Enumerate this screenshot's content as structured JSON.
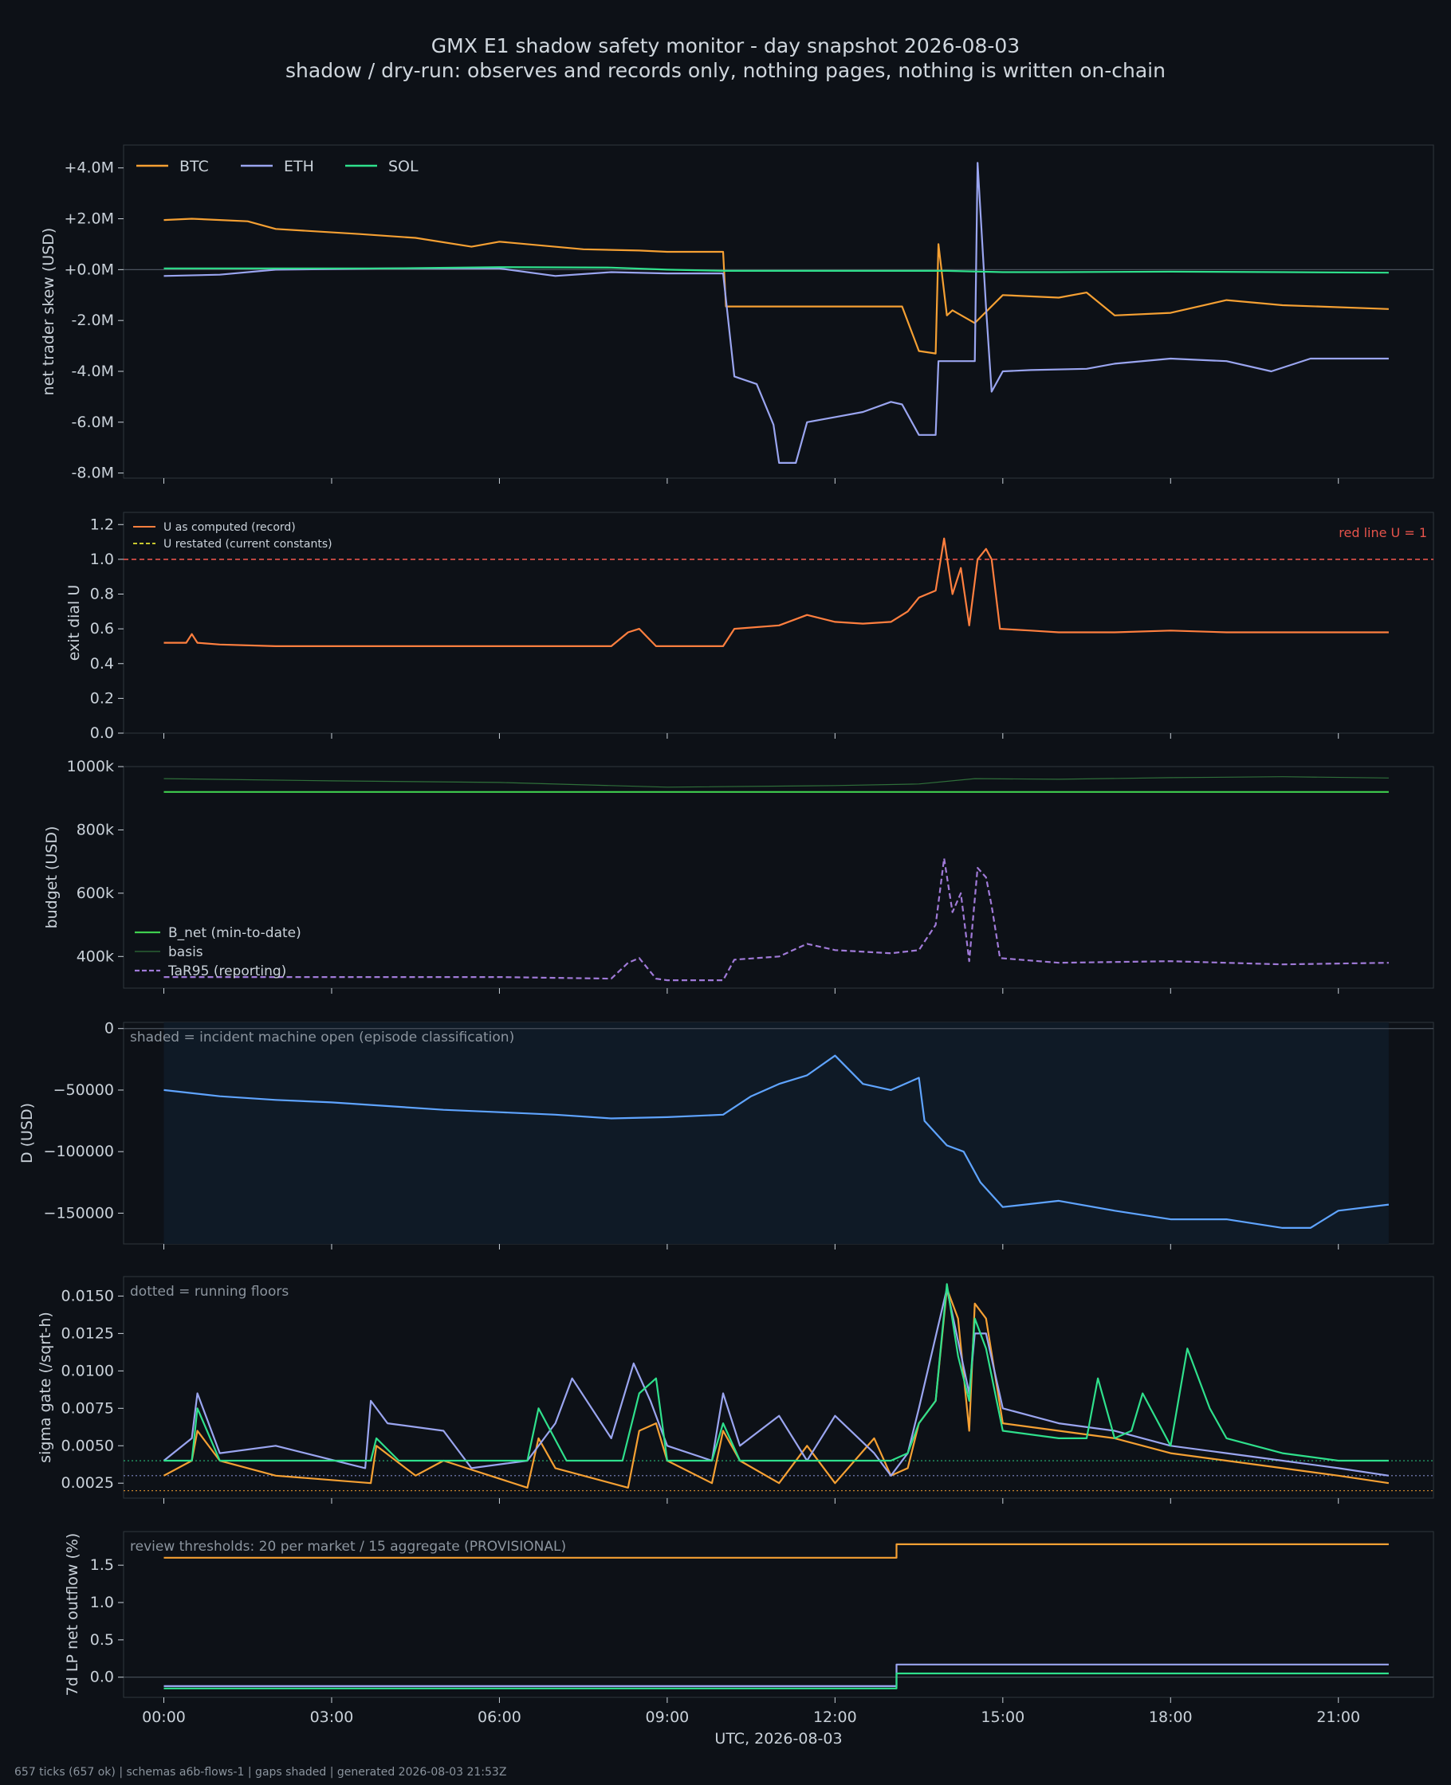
{
  "header": {
    "title": "GMX E1 shadow safety monitor - day snapshot 2026-08-03",
    "subtitle": "shadow / dry-run: observes and records only, nothing pages, nothing is written on-chain"
  },
  "footer": "657 ticks (657 ok) | schemas a6b-flows-1 | gaps shaded | generated 2026-08-03 21:53Z",
  "colors": {
    "btc": "#f5a033",
    "eth": "#9aa5f0",
    "sol": "#2fe08c",
    "u_record": "#ff7f3f",
    "u_restated": "#c8c830",
    "redline": "#e5534b",
    "b_net": "#3fcf4f",
    "basis": "#2f6f3a",
    "tar95": "#a07ad8",
    "d_line": "#5fa4ff",
    "shade": "#0f1a26"
  },
  "chart_data": [
    {
      "id": "skew",
      "type": "line",
      "ylabel": "net trader skew (USD)",
      "ylim": [
        -8.2,
        4.9
      ],
      "yticks": [
        4,
        2,
        0,
        -2,
        -4,
        -6,
        -8
      ],
      "yticklabels": [
        "+4.0M",
        "+2.0M",
        "+0.0M",
        "-2.0M",
        "-4.0M",
        "-6.0M",
        "-8.0M"
      ],
      "legend": "top-left",
      "zero_line": true,
      "series": [
        {
          "name": "BTC",
          "color": "btc",
          "x": [
            0,
            0.5,
            1.5,
            2,
            3.5,
            4.5,
            5.5,
            6,
            7.5,
            8.5,
            9,
            10,
            10.05,
            11.5,
            13.2,
            13.5,
            13.8,
            13.85,
            14,
            14.1,
            14.5,
            15,
            16,
            16.5,
            17,
            18,
            19,
            20,
            21.9
          ],
          "y": [
            1.95,
            2.0,
            1.9,
            1.6,
            1.4,
            1.25,
            0.9,
            1.1,
            0.8,
            0.75,
            0.7,
            0.7,
            -1.45,
            -1.45,
            -1.45,
            -3.2,
            -3.3,
            1.0,
            -1.8,
            -1.6,
            -2.1,
            -1.0,
            -1.1,
            -0.9,
            -1.8,
            -1.7,
            -1.2,
            -1.4,
            -1.55
          ]
        },
        {
          "name": "ETH",
          "color": "eth",
          "x": [
            0,
            1,
            2,
            4,
            6,
            7,
            8,
            9,
            10,
            10.2,
            10.6,
            10.9,
            11,
            11.3,
            11.5,
            12,
            12.5,
            13,
            13.2,
            13.5,
            13.8,
            13.85,
            14,
            14.5,
            14.55,
            14.7,
            14.8,
            15,
            15.5,
            16.5,
            17,
            18,
            19,
            19.8,
            20.5,
            21.9
          ],
          "y": [
            -0.25,
            -0.2,
            0,
            0.05,
            0.05,
            -0.25,
            -0.1,
            -0.15,
            -0.15,
            -4.2,
            -4.5,
            -6.1,
            -7.6,
            -7.6,
            -6.0,
            -5.8,
            -5.6,
            -5.2,
            -5.3,
            -6.5,
            -6.5,
            -3.6,
            -3.6,
            -3.6,
            4.2,
            -1.5,
            -4.8,
            -4.0,
            -3.95,
            -3.9,
            -3.7,
            -3.5,
            -3.6,
            -4.0,
            -3.5,
            -3.5
          ]
        },
        {
          "name": "SOL",
          "color": "sol",
          "x": [
            0,
            2,
            4,
            6,
            8,
            9,
            10,
            12,
            14,
            15,
            16,
            18,
            20,
            21.9
          ],
          "y": [
            0.05,
            0.05,
            0.05,
            0.1,
            0.08,
            0,
            -0.05,
            -0.05,
            -0.05,
            -0.1,
            -0.1,
            -0.08,
            -0.1,
            -0.12
          ]
        }
      ]
    },
    {
      "id": "u",
      "type": "line",
      "ylabel": "exit dial U",
      "ylim": [
        0,
        1.27
      ],
      "yticks": [
        0.0,
        0.2,
        0.4,
        0.6,
        0.8,
        1.0,
        1.2
      ],
      "yticklabels": [
        "0.0",
        "0.2",
        "0.4",
        "0.6",
        "0.8",
        "1.0",
        "1.2"
      ],
      "legend": "top-left",
      "redline": 1.0,
      "redline_label": "red line U = 1",
      "series": [
        {
          "name": "U as computed (record)",
          "color": "u_record",
          "dash": false,
          "x": [
            0,
            0.4,
            0.5,
            0.6,
            1,
            2,
            4,
            6,
            8,
            8.3,
            8.5,
            8.8,
            9,
            9.5,
            10,
            10.2,
            11,
            11.5,
            12,
            12.5,
            13,
            13.3,
            13.5,
            13.8,
            13.95,
            14.1,
            14.25,
            14.4,
            14.55,
            14.7,
            14.8,
            14.95,
            15.5,
            16,
            17,
            18,
            19,
            20,
            21.9
          ],
          "y": [
            0.52,
            0.52,
            0.57,
            0.52,
            0.51,
            0.5,
            0.5,
            0.5,
            0.5,
            0.58,
            0.6,
            0.5,
            0.5,
            0.5,
            0.5,
            0.6,
            0.62,
            0.68,
            0.64,
            0.63,
            0.64,
            0.7,
            0.78,
            0.82,
            1.12,
            0.8,
            0.95,
            0.62,
            1.0,
            1.06,
            1.0,
            0.6,
            0.59,
            0.58,
            0.58,
            0.59,
            0.58,
            0.58,
            0.58
          ]
        },
        {
          "name": "U restated (current constants)",
          "color": "u_restated",
          "dash": true,
          "x": [],
          "y": []
        }
      ]
    },
    {
      "id": "budget",
      "type": "line",
      "ylabel": "budget (USD)",
      "ylim": [
        300,
        1000
      ],
      "yticks": [
        400,
        600,
        800,
        1000
      ],
      "yticklabels": [
        "400k",
        "600k",
        "800k",
        "1000k"
      ],
      "legend": "bottom-left",
      "series": [
        {
          "name": "B_net (min-to-date)",
          "color": "b_net",
          "dash": false,
          "x": [
            0,
            21.9
          ],
          "y": [
            920,
            920
          ]
        },
        {
          "name": "basis",
          "color": "basis",
          "dash": false,
          "x": [
            0,
            3,
            6,
            9,
            12,
            13.5,
            14.5,
            16,
            18,
            20,
            21.9
          ],
          "y": [
            962,
            955,
            950,
            935,
            940,
            945,
            962,
            960,
            965,
            968,
            964
          ]
        },
        {
          "name": "TaR95 (reporting)",
          "color": "tar95",
          "dash": true,
          "x": [
            0,
            2,
            4,
            6,
            8,
            8.3,
            8.5,
            8.8,
            9,
            10,
            10.2,
            11,
            11.5,
            12,
            13,
            13.5,
            13.8,
            13.95,
            14.1,
            14.25,
            14.4,
            14.55,
            14.7,
            14.8,
            14.95,
            16,
            18,
            20,
            21.9
          ],
          "y": [
            335,
            335,
            335,
            335,
            330,
            380,
            395,
            330,
            325,
            325,
            390,
            400,
            440,
            420,
            410,
            420,
            500,
            710,
            540,
            600,
            385,
            680,
            650,
            560,
            395,
            380,
            385,
            375,
            380
          ]
        }
      ]
    },
    {
      "id": "d",
      "type": "line",
      "ylabel": "D (USD)",
      "ylim": [
        -175000,
        5000
      ],
      "yticks": [
        0,
        -50000,
        -100000,
        -150000
      ],
      "yticklabels": [
        "0",
        "−50000",
        "−100000",
        "−150000"
      ],
      "zero_line": true,
      "note": "shaded = incident machine open (episode classification)",
      "shade_x": [
        0,
        21.9
      ],
      "series": [
        {
          "name": "D",
          "color": "d_line",
          "x": [
            0,
            1,
            2,
            3,
            4,
            5,
            6,
            7,
            8,
            9,
            10,
            10.5,
            11,
            11.5,
            12,
            12.5,
            13,
            13.5,
            13.6,
            14,
            14.3,
            14.6,
            15,
            16,
            17,
            18,
            19,
            20,
            20.5,
            21,
            21.9
          ],
          "y": [
            -50000,
            -55000,
            -58000,
            -60000,
            -63000,
            -66000,
            -68000,
            -70000,
            -73000,
            -72000,
            -70000,
            -55000,
            -45000,
            -38000,
            -22000,
            -45000,
            -50000,
            -40000,
            -75000,
            -95000,
            -100000,
            -125000,
            -145000,
            -140000,
            -148000,
            -155000,
            -155000,
            -162000,
            -162000,
            -148000,
            -143000
          ]
        }
      ]
    },
    {
      "id": "sigma",
      "type": "line",
      "ylabel": "sigma gate (/sqrt-h)",
      "ylim": [
        0.0015,
        0.0163
      ],
      "yticks": [
        0.0025,
        0.005,
        0.0075,
        0.01,
        0.0125,
        0.015
      ],
      "yticklabels": [
        "0.0025",
        "0.0050",
        "0.0075",
        "0.0100",
        "0.0125",
        "0.0150"
      ],
      "note": "dotted = running floors",
      "floors": [
        {
          "color": "sol",
          "value": 0.004
        },
        {
          "color": "eth",
          "value": 0.003
        },
        {
          "color": "btc",
          "value": 0.002
        }
      ],
      "series": [
        {
          "name": "BTC",
          "color": "btc",
          "x": [
            0,
            0.5,
            0.6,
            1,
            2,
            3.7,
            3.8,
            4.5,
            5,
            6.5,
            6.7,
            7,
            8.3,
            8.5,
            8.8,
            9,
            9.8,
            10,
            10.3,
            11,
            11.5,
            12,
            12.7,
            13,
            13.3,
            13.5,
            13.8,
            14,
            14.2,
            14.4,
            14.5,
            14.7,
            15,
            16,
            17,
            18,
            19,
            20,
            21,
            21.9
          ],
          "y": [
            0.003,
            0.004,
            0.006,
            0.004,
            0.003,
            0.0025,
            0.005,
            0.003,
            0.004,
            0.0022,
            0.0055,
            0.0035,
            0.0022,
            0.006,
            0.0065,
            0.004,
            0.0025,
            0.006,
            0.004,
            0.0025,
            0.005,
            0.0025,
            0.0055,
            0.003,
            0.0035,
            0.0065,
            0.008,
            0.0155,
            0.0135,
            0.006,
            0.0145,
            0.0135,
            0.0065,
            0.006,
            0.0055,
            0.0045,
            0.004,
            0.0035,
            0.003,
            0.0025
          ]
        },
        {
          "name": "ETH",
          "color": "eth",
          "x": [
            0,
            0.5,
            0.6,
            1,
            2,
            3.6,
            3.7,
            4,
            5,
            5.5,
            6.5,
            7,
            7.3,
            8,
            8.4,
            8.7,
            9,
            9.8,
            10,
            10.3,
            11,
            11.5,
            12,
            12.7,
            13,
            13.3,
            13.5,
            14,
            14.2,
            14.4,
            14.5,
            14.7,
            15,
            16,
            17,
            18,
            19,
            20,
            21,
            21.9
          ],
          "y": [
            0.004,
            0.0055,
            0.0085,
            0.0045,
            0.005,
            0.0035,
            0.008,
            0.0065,
            0.006,
            0.0035,
            0.004,
            0.0065,
            0.0095,
            0.0055,
            0.0105,
            0.008,
            0.005,
            0.004,
            0.0085,
            0.005,
            0.007,
            0.004,
            0.007,
            0.0045,
            0.003,
            0.0045,
            0.0075,
            0.0155,
            0.012,
            0.0085,
            0.0125,
            0.0125,
            0.0075,
            0.0065,
            0.006,
            0.005,
            0.0045,
            0.004,
            0.0035,
            0.003
          ]
        },
        {
          "name": "SOL",
          "color": "sol",
          "x": [
            0,
            0.5,
            0.6,
            1,
            3.7,
            3.8,
            4.2,
            6.5,
            6.7,
            7.2,
            8.2,
            8.5,
            8.8,
            9,
            9.8,
            10,
            10.3,
            12.7,
            13,
            13.3,
            13.5,
            13.8,
            14,
            14.2,
            14.4,
            14.5,
            14.7,
            15,
            16,
            16.5,
            16.7,
            17,
            17.3,
            17.5,
            18,
            18.3,
            18.7,
            19,
            20,
            21,
            21.9
          ],
          "y": [
            0.004,
            0.004,
            0.0075,
            0.004,
            0.004,
            0.0055,
            0.004,
            0.004,
            0.0075,
            0.004,
            0.004,
            0.0085,
            0.0095,
            0.004,
            0.004,
            0.0065,
            0.004,
            0.004,
            0.004,
            0.0045,
            0.0065,
            0.008,
            0.0158,
            0.011,
            0.008,
            0.0135,
            0.0115,
            0.006,
            0.0055,
            0.0055,
            0.0095,
            0.0055,
            0.006,
            0.0085,
            0.005,
            0.0115,
            0.0075,
            0.0055,
            0.0045,
            0.004,
            0.004
          ]
        }
      ]
    },
    {
      "id": "outflow",
      "type": "line",
      "ylabel": "7d LP net outflow (%)",
      "ylim": [
        -0.27,
        1.95
      ],
      "yticks": [
        0.0,
        0.5,
        1.0,
        1.5
      ],
      "yticklabels": [
        "0.0",
        "0.5",
        "1.0",
        "1.5"
      ],
      "zero_line": true,
      "note": "review thresholds: 20 per market / 15 aggregate (PROVISIONAL)",
      "xlabel": "UTC, 2026-08-03",
      "xticks": [
        0,
        3,
        6,
        9,
        12,
        15,
        18,
        21
      ],
      "xticklabels": [
        "00:00",
        "03:00",
        "06:00",
        "09:00",
        "12:00",
        "15:00",
        "18:00",
        "21:00"
      ],
      "series": [
        {
          "name": "BTC",
          "color": "btc",
          "x": [
            0,
            13.1,
            13.1,
            21.9
          ],
          "y": [
            1.6,
            1.6,
            1.78,
            1.78
          ]
        },
        {
          "name": "ETH",
          "color": "eth",
          "x": [
            0,
            13.1,
            13.1,
            21.9
          ],
          "y": [
            -0.12,
            -0.12,
            0.17,
            0.17
          ]
        },
        {
          "name": "SOL",
          "color": "sol",
          "x": [
            0,
            13.1,
            13.1,
            21.9
          ],
          "y": [
            -0.15,
            -0.15,
            0.05,
            0.05
          ]
        }
      ]
    }
  ]
}
